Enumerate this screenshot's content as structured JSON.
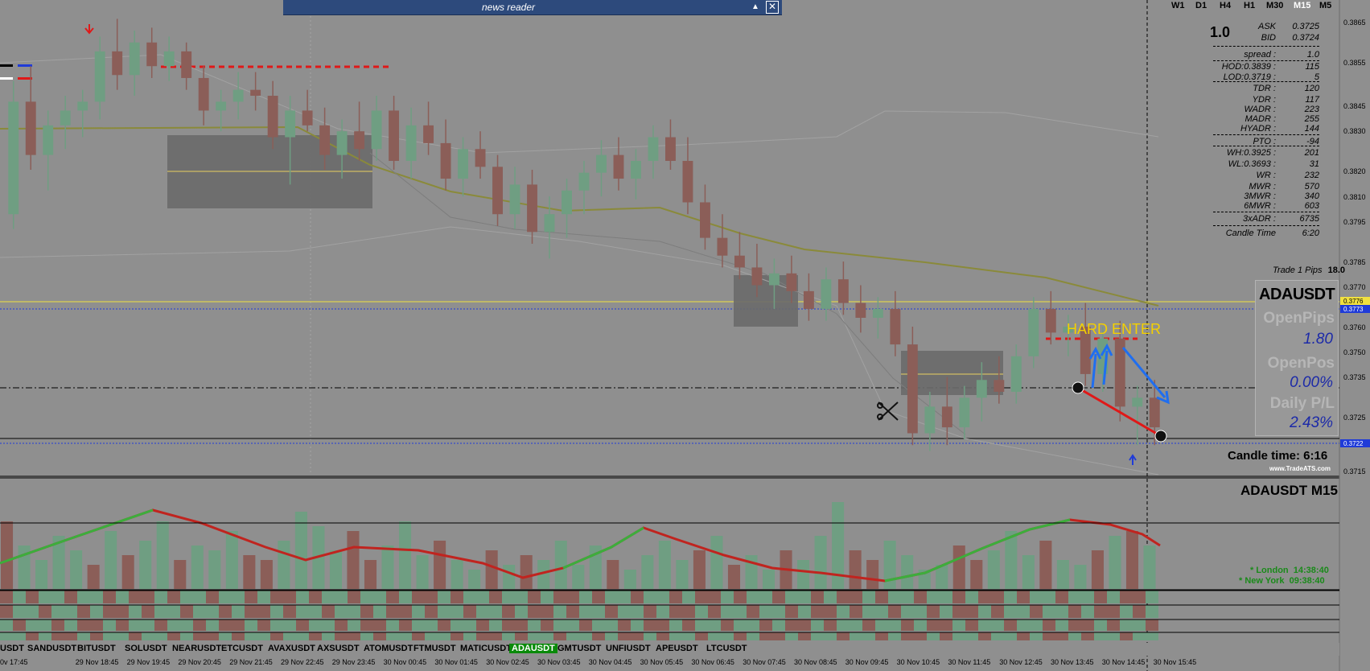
{
  "window": {
    "news_reader_title": "news reader",
    "minimize_glyph": "▲",
    "close_glyph": "✕"
  },
  "timeframes": [
    {
      "label": "W1",
      "active": false
    },
    {
      "label": "D1",
      "active": false
    },
    {
      "label": "H4",
      "active": false
    },
    {
      "label": "H1",
      "active": false
    },
    {
      "label": "M30",
      "active": false
    },
    {
      "label": "M15",
      "active": true
    },
    {
      "label": "M5",
      "active": false
    }
  ],
  "info_panel": {
    "lot": "1.0",
    "ask_label": "ASK",
    "ask_value": "0.3725",
    "bid_label": "BID",
    "bid_value": "0.3724",
    "rows": [
      {
        "label": "spread :",
        "value": "1.0"
      },
      {
        "label": "HOD:0.3839 :",
        "value": "115"
      },
      {
        "label": "LOD:0.3719 :",
        "value": "5"
      },
      {
        "label": "TDR :",
        "value": "120"
      },
      {
        "label": "YDR :",
        "value": "117"
      },
      {
        "label": "WADR :",
        "value": "223"
      },
      {
        "label": "MADR :",
        "value": "255"
      },
      {
        "label": "HYADR :",
        "value": "144"
      },
      {
        "label": "PTO :",
        "value": "-94"
      },
      {
        "label": "WH:0.3925 :",
        "value": "201"
      },
      {
        "label": "WL:0.3693 :",
        "value": "31"
      },
      {
        "label": "WR :",
        "value": "232"
      },
      {
        "label": "MWR :",
        "value": "570"
      },
      {
        "label": "3MWR :",
        "value": "340"
      },
      {
        "label": "6MWR :",
        "value": "603"
      },
      {
        "label": "3xADR :",
        "value": "6735"
      },
      {
        "label": "Candle Time",
        "value": "6:20"
      }
    ],
    "trade_pips_label": "Trade 1 Pips",
    "trade_pips_value": "18.0"
  },
  "price_axis": [
    "0.3865",
    "0.3855",
    "0.3845",
    "0.3830",
    "0.3820",
    "0.3810",
    "0.3795",
    "0.3785",
    "0.3770",
    "0.3760",
    "0.3750",
    "0.3735",
    "0.3725",
    "0.3715"
  ],
  "price_markers": {
    "yellow": "0.3776",
    "blue_top": "0.3773",
    "blue_bottom": "0.3722"
  },
  "trade_box": {
    "symbol": "ADAUSDT",
    "open_pips_label": "OpenPips",
    "open_pips_value": "1.80",
    "open_pos_label": "OpenPos",
    "open_pos_value": "0.00%",
    "daily_pl_label": "Daily P/L",
    "daily_pl_value": "2.43%"
  },
  "candle_time_text": "Candle time:  6:16",
  "watermark": "www.TradeATS.com",
  "indicator_title": "ADAUSDT  M15",
  "sessions": [
    {
      "name": "* London",
      "time": "14:38:40"
    },
    {
      "name": "* New York",
      "time": "09:38:40"
    }
  ],
  "annotation": "HARD ENTER",
  "symbols": [
    {
      "label": "USDT",
      "active": false
    },
    {
      "label": "SANDUSDT",
      "active": false
    },
    {
      "label": "BITUSDT",
      "active": false
    },
    {
      "label": "SOLUSDT",
      "active": false
    },
    {
      "label": "NEARUSDT",
      "active": false
    },
    {
      "label": "ETCUSDT",
      "active": false
    },
    {
      "label": "AVAXUSDT",
      "active": false
    },
    {
      "label": "AXSUSDT",
      "active": false
    },
    {
      "label": "ATOMUSDT",
      "active": false
    },
    {
      "label": "FTMUSDT",
      "active": false
    },
    {
      "label": "MATICUSDT",
      "active": false
    },
    {
      "label": "ADAUSDT",
      "active": true
    },
    {
      "label": "GMTUSDT",
      "active": false
    },
    {
      "label": "UNFIUSDT",
      "active": false
    },
    {
      "label": "APEUSDT",
      "active": false
    },
    {
      "label": "LTCUSDT",
      "active": false
    }
  ],
  "time_labels": [
    "0v 17:45",
    "29 Nov 18:45",
    "29 Nov 19:45",
    "29 Nov 20:45",
    "29 Nov 21:45",
    "29 Nov 22:45",
    "29 Nov 23:45",
    "30 Nov 00:45",
    "30 Nov 01:45",
    "30 Nov 02:45",
    "30 Nov 03:45",
    "30 Nov 04:45",
    "30 Nov 05:45",
    "30 Nov 06:45",
    "30 Nov 07:45",
    "30 Nov 08:45",
    "30 Nov 09:45",
    "30 Nov 10:45",
    "30 Nov 11:45",
    "30 Nov 12:45",
    "30 Nov 13:45",
    "30 Nov 14:45",
    "30 Nov 15:45"
  ],
  "colors": {
    "bull": "#6f9e82",
    "bear": "#8b5e58",
    "ema": "#8a8a3a",
    "red_osc": "#c0241f",
    "green_osc": "#3cae3c",
    "blue_arrow": "#1f6ef0"
  },
  "chart_data": {
    "type": "candlestick",
    "symbol": "ADAUSDT",
    "timeframe": "M15",
    "price_min": 0.3712,
    "price_max": 0.3868,
    "ohlc": [
      [
        0.38,
        0.3845,
        0.3795,
        0.3838
      ],
      [
        0.3838,
        0.385,
        0.3815,
        0.382
      ],
      [
        0.382,
        0.3835,
        0.3808,
        0.383
      ],
      [
        0.383,
        0.384,
        0.3822,
        0.3835
      ],
      [
        0.3835,
        0.3842,
        0.3826,
        0.3838
      ],
      [
        0.3838,
        0.386,
        0.3832,
        0.3855
      ],
      [
        0.3855,
        0.3866,
        0.3842,
        0.3847
      ],
      [
        0.3847,
        0.3862,
        0.384,
        0.3858
      ],
      [
        0.3858,
        0.3863,
        0.3846,
        0.385
      ],
      [
        0.385,
        0.386,
        0.3845,
        0.3855
      ],
      [
        0.3855,
        0.3858,
        0.3842,
        0.3846
      ],
      [
        0.3846,
        0.385,
        0.383,
        0.3835
      ],
      [
        0.3835,
        0.3842,
        0.3828,
        0.3838
      ],
      [
        0.3838,
        0.3848,
        0.3832,
        0.3842
      ],
      [
        0.3842,
        0.3848,
        0.3835,
        0.384
      ],
      [
        0.384,
        0.3845,
        0.3822,
        0.3826
      ],
      [
        0.3826,
        0.384,
        0.381,
        0.3835
      ],
      [
        0.3835,
        0.3842,
        0.3828,
        0.383
      ],
      [
        0.383,
        0.3836,
        0.3815,
        0.382
      ],
      [
        0.382,
        0.3832,
        0.3812,
        0.3828
      ],
      [
        0.3828,
        0.3838,
        0.3818,
        0.3822
      ],
      [
        0.3822,
        0.384,
        0.3818,
        0.3835
      ],
      [
        0.3835,
        0.384,
        0.3815,
        0.3818
      ],
      [
        0.3818,
        0.3836,
        0.3812,
        0.383
      ],
      [
        0.383,
        0.3838,
        0.382,
        0.3824
      ],
      [
        0.3824,
        0.3832,
        0.3808,
        0.3812
      ],
      [
        0.3812,
        0.3826,
        0.3806,
        0.3822
      ],
      [
        0.3822,
        0.3828,
        0.3812,
        0.3816
      ],
      [
        0.3816,
        0.382,
        0.3796,
        0.38
      ],
      [
        0.38,
        0.3816,
        0.3795,
        0.381
      ],
      [
        0.381,
        0.3815,
        0.379,
        0.3794
      ],
      [
        0.3794,
        0.3806,
        0.3785,
        0.38
      ],
      [
        0.38,
        0.3812,
        0.3792,
        0.3808
      ],
      [
        0.3808,
        0.3818,
        0.38,
        0.3814
      ],
      [
        0.3814,
        0.3825,
        0.3806,
        0.382
      ],
      [
        0.382,
        0.3826,
        0.3808,
        0.3812
      ],
      [
        0.3812,
        0.3822,
        0.3805,
        0.3818
      ],
      [
        0.3818,
        0.383,
        0.3812,
        0.3826
      ],
      [
        0.3826,
        0.3832,
        0.3815,
        0.3818
      ],
      [
        0.3818,
        0.3826,
        0.38,
        0.3804
      ],
      [
        0.3804,
        0.381,
        0.3788,
        0.3792
      ],
      [
        0.3792,
        0.38,
        0.3782,
        0.3786
      ],
      [
        0.3786,
        0.3794,
        0.3778,
        0.3782
      ],
      [
        0.3782,
        0.379,
        0.3772,
        0.3776
      ],
      [
        0.3776,
        0.3785,
        0.3768,
        0.378
      ],
      [
        0.378,
        0.3786,
        0.377,
        0.3774
      ],
      [
        0.3774,
        0.378,
        0.3764,
        0.3768
      ],
      [
        0.3768,
        0.3782,
        0.3764,
        0.3778
      ],
      [
        0.3778,
        0.3784,
        0.3766,
        0.377
      ],
      [
        0.377,
        0.3776,
        0.376,
        0.3765
      ],
      [
        0.3765,
        0.3772,
        0.3758,
        0.3768
      ],
      [
        0.3768,
        0.3774,
        0.3752,
        0.3756
      ],
      [
        0.3756,
        0.3762,
        0.3722,
        0.3726
      ],
      [
        0.3726,
        0.374,
        0.372,
        0.3735
      ],
      [
        0.3735,
        0.3745,
        0.3722,
        0.3728
      ],
      [
        0.3728,
        0.3742,
        0.3724,
        0.3738
      ],
      [
        0.3738,
        0.375,
        0.373,
        0.3744
      ],
      [
        0.3744,
        0.3752,
        0.3736,
        0.374
      ],
      [
        0.374,
        0.3756,
        0.3736,
        0.3752
      ],
      [
        0.3752,
        0.3772,
        0.3748,
        0.3768
      ],
      [
        0.3768,
        0.3774,
        0.3756,
        0.376
      ],
      [
        0.376,
        0.3766,
        0.3752,
        0.3762
      ],
      [
        0.3762,
        0.377,
        0.3742,
        0.3746
      ],
      [
        0.3746,
        0.3762,
        0.374,
        0.3758
      ],
      [
        0.3758,
        0.3764,
        0.373,
        0.3735
      ],
      [
        0.3735,
        0.3742,
        0.3722,
        0.3738
      ],
      [
        0.3738,
        0.3744,
        0.3722,
        0.3728
      ]
    ],
    "oscillator": {
      "type": "histogram",
      "values": [
        0.7,
        0.45,
        0.3,
        0.55,
        0.4,
        0.25,
        0.6,
        0.35,
        0.5,
        0.7,
        0.3,
        0.45,
        0.4,
        0.6,
        0.35,
        0.3,
        0.5,
        0.8,
        0.65,
        0.4,
        0.6,
        0.3,
        0.45,
        0.7,
        0.35,
        0.5,
        0.3,
        0.2,
        0.4,
        0.25,
        0.35,
        0.3,
        0.5,
        0.25,
        0.45,
        0.3,
        0.2,
        0.35,
        0.5,
        0.3,
        0.4,
        0.55,
        0.25,
        0.35,
        0.2,
        0.4,
        0.3,
        0.55,
        0.9,
        0.4,
        0.3,
        0.5,
        0.35,
        0.2,
        0.25,
        0.45,
        0.3,
        0.4,
        0.6,
        0.35,
        0.5,
        0.3,
        0.25,
        0.4,
        0.55,
        0.6,
        0.45
      ]
    }
  }
}
